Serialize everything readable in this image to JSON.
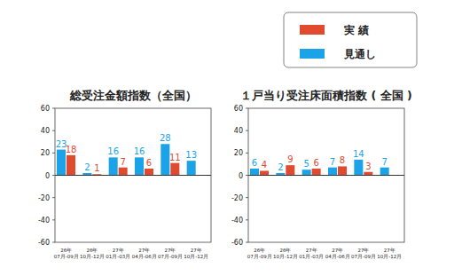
{
  "chart_data": [
    {
      "type": "bar",
      "title": "総受注金額指数（全国）",
      "categories": [
        "26年 07月-09月",
        "26年 10月-12月",
        "27年 01月-03月",
        "27年 04月-06月",
        "27年 07月-09月",
        "27年 10月-12月"
      ],
      "series": [
        {
          "name": "実 績",
          "color": "#e04a2e",
          "values": [
            18,
            1,
            7,
            6,
            11,
            null
          ]
        },
        {
          "name": "見通し",
          "color": "#1aa3e8",
          "values": [
            23,
            2,
            16,
            16,
            28,
            13
          ]
        }
      ],
      "ylim": [
        -60,
        60
      ],
      "yticks": [
        -60,
        -40,
        -20,
        0,
        20,
        40,
        60
      ],
      "grid": false,
      "data_labels": true,
      "legend": "top right"
    },
    {
      "type": "bar",
      "title": "１戸当り受注床面積指数 ( 全国 )",
      "categories": [
        "26年 07月-09月",
        "26年 10月-12月",
        "27年 01月-03月",
        "27年 04月-06月",
        "27年 07月-09月",
        "27年 10月-12月"
      ],
      "series": [
        {
          "name": "実 績",
          "color": "#e04a2e",
          "values": [
            4,
            9,
            6,
            8,
            3,
            null
          ]
        },
        {
          "name": "見通し",
          "color": "#1aa3e8",
          "values": [
            6,
            2,
            5,
            7,
            14,
            7
          ]
        }
      ],
      "ylim": [
        -60,
        60
      ],
      "yticks": [
        -60,
        -40,
        -20,
        0,
        20,
        40,
        60
      ],
      "grid": false,
      "data_labels": true
    }
  ]
}
